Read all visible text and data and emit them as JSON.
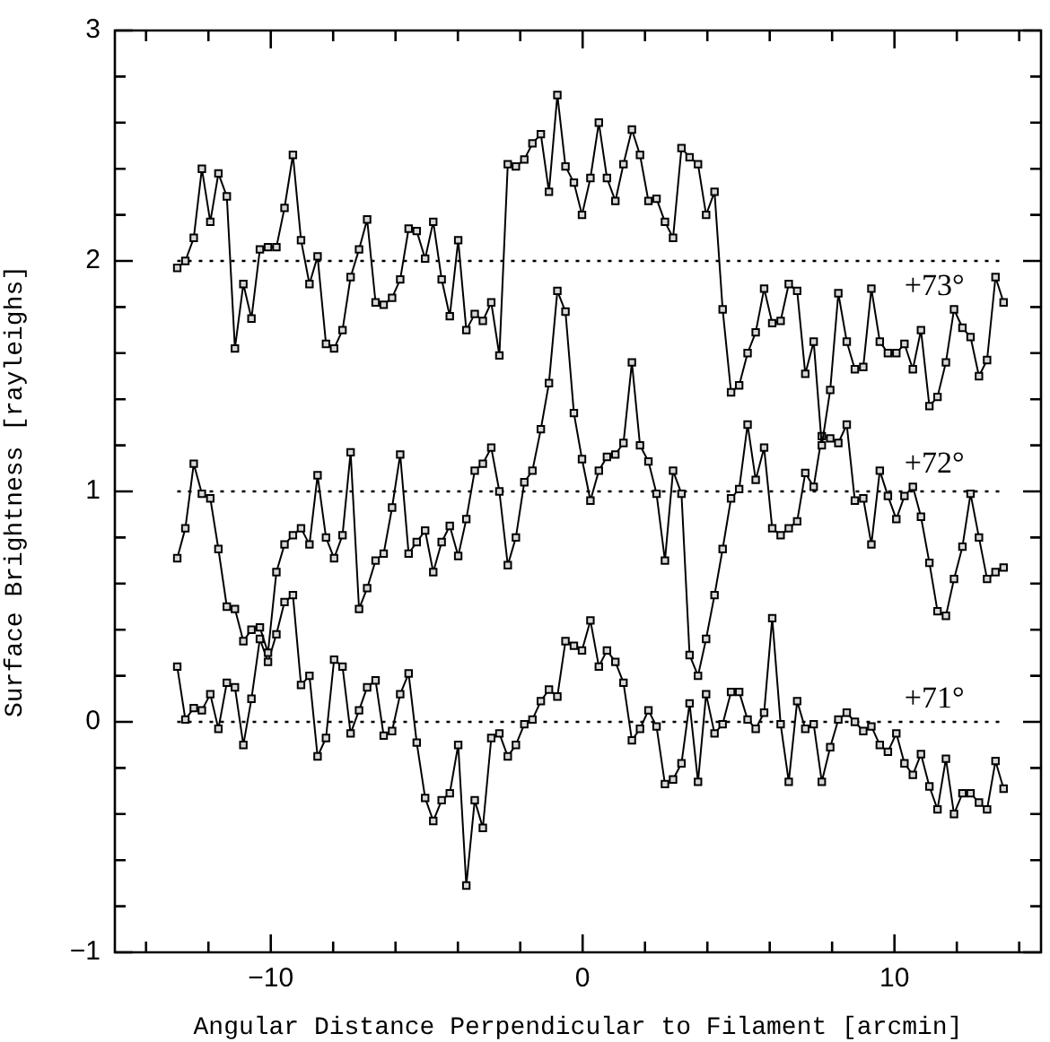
{
  "chart_data": {
    "type": "line",
    "xlabel": "Angular Distance Perpendicular to Filament [arcmin]",
    "ylabel": "Surface Brightness [rayleighs]",
    "xlim": [
      -15,
      14.7
    ],
    "xticks": [
      {
        "value": -14,
        "label": null
      },
      {
        "value": -12,
        "label": null
      },
      {
        "value": -10,
        "label": "−10"
      },
      {
        "value": -8,
        "label": null
      },
      {
        "value": -6,
        "label": null
      },
      {
        "value": -4,
        "label": null
      },
      {
        "value": -2,
        "label": null
      },
      0,
      {
        "value": 2,
        "label": null
      },
      {
        "value": 4,
        "label": null
      },
      {
        "value": 6,
        "label": null
      },
      {
        "value": 8,
        "label": null
      },
      10,
      {
        "value": 12,
        "label": null
      },
      {
        "value": 14,
        "label": null
      }
    ],
    "ylim": [
      -1,
      3
    ],
    "yticks": [
      {
        "value": -1,
        "label": "−1"
      },
      {
        "value": -0.8,
        "label": null
      },
      {
        "value": -0.6,
        "label": null
      },
      {
        "value": -0.4,
        "label": null
      },
      {
        "value": -0.2,
        "label": null
      },
      0,
      {
        "value": 0.2,
        "label": null
      },
      {
        "value": 0.4,
        "label": null
      },
      {
        "value": 0.6,
        "label": null
      },
      {
        "value": 0.8,
        "label": null
      },
      1,
      {
        "value": 1.2,
        "label": null
      },
      {
        "value": 1.4,
        "label": null
      },
      {
        "value": 1.6,
        "label": null
      },
      {
        "value": 1.8,
        "label": null
      },
      2,
      {
        "value": 2.2,
        "label": null
      },
      {
        "value": 2.4,
        "label": null
      },
      {
        "value": 2.6,
        "label": null
      },
      {
        "value": 2.8,
        "label": null
      },
      3
    ],
    "marker": "square",
    "legend": "right",
    "x": [
      -13.0,
      -12.74,
      -12.47,
      -12.21,
      -11.94,
      -11.68,
      -11.41,
      -11.15,
      -10.88,
      -10.62,
      -10.35,
      -10.09,
      -9.82,
      -9.56,
      -9.29,
      -9.03,
      -8.76,
      -8.5,
      -8.23,
      -7.97,
      -7.7,
      -7.44,
      -7.17,
      -6.91,
      -6.64,
      -6.38,
      -6.11,
      -5.85,
      -5.58,
      -5.32,
      -5.05,
      -4.79,
      -4.52,
      -4.26,
      -3.99,
      -3.73,
      -3.46,
      -3.2,
      -2.93,
      -2.67,
      -2.4,
      -2.14,
      -1.87,
      -1.61,
      -1.34,
      -1.08,
      -0.81,
      -0.55,
      -0.28,
      -0.02,
      0.25,
      0.52,
      0.78,
      1.05,
      1.31,
      1.58,
      1.84,
      2.11,
      2.37,
      2.64,
      2.9,
      3.17,
      3.43,
      3.7,
      3.96,
      4.23,
      4.49,
      4.76,
      5.02,
      5.29,
      5.55,
      5.82,
      6.08,
      6.35,
      6.61,
      6.88,
      7.14,
      7.41,
      7.67,
      7.94,
      8.2,
      8.47,
      8.73,
      9.0,
      9.26,
      9.53,
      9.79,
      10.06,
      10.32,
      10.59,
      10.85,
      11.12,
      11.38,
      11.65,
      11.91,
      12.18,
      12.44,
      12.71,
      12.97,
      13.24,
      13.5
    ],
    "series": [
      {
        "name": "+73°",
        "color": "#000000",
        "values": [
          1.97,
          2.0,
          2.1,
          2.4,
          2.17,
          2.38,
          2.28,
          1.62,
          1.9,
          1.75,
          2.05,
          2.06,
          2.06,
          2.23,
          2.46,
          2.09,
          1.9,
          2.02,
          1.64,
          1.62,
          1.7,
          1.93,
          2.05,
          2.18,
          1.82,
          1.81,
          1.84,
          1.92,
          2.14,
          2.13,
          2.01,
          2.17,
          1.92,
          1.76,
          2.09,
          1.7,
          1.77,
          1.74,
          1.82,
          1.59,
          2.42,
          2.41,
          2.44,
          2.51,
          2.55,
          2.3,
          2.72,
          2.41,
          2.34,
          2.2,
          2.36,
          2.6,
          2.36,
          2.26,
          2.42,
          2.57,
          2.46,
          2.26,
          2.27,
          2.17,
          2.1,
          2.49,
          2.45,
          2.42,
          2.2,
          2.3,
          1.79,
          1.43,
          1.46,
          1.6,
          1.69,
          1.88,
          1.73,
          1.74,
          1.9,
          1.87,
          1.51,
          1.65,
          1.2,
          1.44,
          1.86,
          1.65,
          1.53,
          1.54,
          1.88,
          1.65,
          1.6,
          1.6,
          1.64,
          1.53,
          1.7,
          1.37,
          1.41,
          1.56,
          1.79,
          1.71,
          1.67,
          1.5,
          1.57,
          1.93,
          1.82
        ]
      },
      {
        "name": "+72°",
        "color": "#000000",
        "values": [
          0.71,
          0.84,
          1.12,
          0.99,
          0.97,
          0.75,
          0.5,
          0.49,
          0.35,
          0.4,
          0.41,
          0.3,
          0.65,
          0.77,
          0.81,
          0.84,
          0.77,
          1.07,
          0.8,
          0.71,
          0.81,
          1.17,
          0.49,
          0.58,
          0.7,
          0.73,
          0.93,
          1.16,
          0.73,
          0.78,
          0.83,
          0.65,
          0.78,
          0.85,
          0.72,
          0.88,
          1.09,
          1.12,
          1.19,
          1.0,
          0.68,
          0.8,
          1.04,
          1.09,
          1.27,
          1.47,
          1.87,
          1.78,
          1.34,
          1.14,
          0.96,
          1.09,
          1.15,
          1.16,
          1.21,
          1.56,
          1.2,
          1.13,
          0.99,
          0.7,
          1.09,
          0.99,
          0.29,
          0.2,
          0.36,
          0.55,
          0.75,
          0.97,
          1.01,
          1.29,
          1.05,
          1.19,
          0.84,
          0.81,
          0.84,
          0.87,
          1.08,
          1.02,
          1.24,
          1.23,
          1.21,
          1.29,
          0.96,
          0.97,
          0.77,
          1.09,
          0.98,
          0.88,
          0.98,
          1.02,
          0.89,
          0.69,
          0.48,
          0.46,
          0.62,
          0.76,
          0.99,
          0.8,
          0.62,
          0.65,
          0.67
        ]
      },
      {
        "name": "+71°",
        "color": "#000000",
        "values": [
          0.24,
          0.01,
          0.06,
          0.05,
          0.12,
          -0.03,
          0.17,
          0.15,
          -0.1,
          0.1,
          0.36,
          0.26,
          0.38,
          0.52,
          0.55,
          0.16,
          0.2,
          -0.15,
          -0.07,
          0.27,
          0.24,
          -0.05,
          0.05,
          0.15,
          0.18,
          -0.06,
          -0.04,
          0.12,
          0.21,
          -0.09,
          -0.33,
          -0.43,
          -0.34,
          -0.31,
          -0.1,
          -0.71,
          -0.34,
          -0.46,
          -0.07,
          -0.05,
          -0.15,
          -0.1,
          -0.01,
          0.01,
          0.09,
          0.14,
          0.11,
          0.35,
          0.33,
          0.31,
          0.44,
          0.24,
          0.31,
          0.26,
          0.17,
          -0.08,
          -0.03,
          0.05,
          -0.02,
          -0.27,
          -0.25,
          -0.18,
          0.08,
          -0.26,
          0.12,
          -0.05,
          -0.01,
          0.13,
          0.13,
          0.01,
          -0.03,
          0.04,
          0.45,
          -0.01,
          -0.26,
          0.09,
          -0.03,
          -0.01,
          -0.26,
          -0.11,
          0.01,
          0.04,
          0.0,
          -0.04,
          -0.02,
          -0.1,
          -0.13,
          -0.05,
          -0.18,
          -0.23,
          -0.14,
          -0.28,
          -0.38,
          -0.16,
          -0.4,
          -0.31,
          -0.31,
          -0.35,
          -0.38,
          -0.17,
          -0.29
        ]
      }
    ],
    "ref_lines": [
      {
        "axis": "y",
        "value": 2,
        "line_style": "dotted",
        "color": "#000000"
      },
      {
        "axis": "y",
        "value": 1,
        "line_style": "dotted",
        "color": "#000000"
      },
      {
        "axis": "y",
        "value": 0,
        "line_style": "dotted",
        "color": "#000000"
      }
    ]
  }
}
